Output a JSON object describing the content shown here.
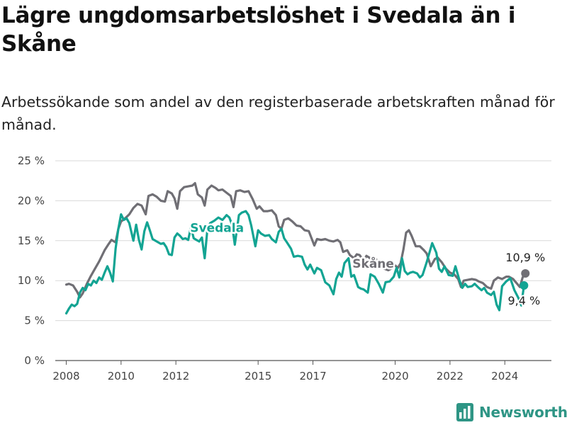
{
  "title": "Lägre ungdomsarbetslöshet i Svedala än i Skåne",
  "subtitle": "Arbetssökande som andel av den registerbaserade arbetskraften månad för månad.",
  "brand": {
    "name": "Newsworthy",
    "logo_icon": "bar-chart-icon",
    "color": "#2e9585"
  },
  "colors": {
    "svedala": "#13a493",
    "skane": "#706f75",
    "grid": "#d9d9d9",
    "axis": "#444444"
  },
  "chart_data": {
    "type": "line",
    "xlim": [
      2007.6,
      2025.7
    ],
    "ylim": [
      0,
      25
    ],
    "x_ticks": [
      {
        "value": 2008,
        "label": "2008"
      },
      {
        "value": 2010,
        "label": "2010"
      },
      {
        "value": 2012,
        "label": "2012"
      },
      {
        "value": 2015,
        "label": "2015"
      },
      {
        "value": 2017,
        "label": "2017"
      },
      {
        "value": 2020,
        "label": "2020"
      },
      {
        "value": 2022,
        "label": "2022"
      },
      {
        "value": 2024,
        "label": "2024"
      }
    ],
    "y_ticks": [
      {
        "value": 0,
        "label": "0 %"
      },
      {
        "value": 5,
        "label": "5 %"
      },
      {
        "value": 10,
        "label": "10 %"
      },
      {
        "value": 15,
        "label": "15 %"
      },
      {
        "value": 20,
        "label": "20 %"
      },
      {
        "value": 25,
        "label": "25 %"
      }
    ],
    "series": [
      {
        "name": "Skåne",
        "label": "Skåne",
        "color": "#706f75",
        "label_at": [
          2019.2,
          11.6
        ],
        "end_label": "10,9 %",
        "points": [
          [
            2008.0,
            9.5
          ],
          [
            2008.1,
            9.6
          ],
          [
            2008.25,
            9.4
          ],
          [
            2008.4,
            8.6
          ],
          [
            2008.5,
            7.9
          ],
          [
            2008.6,
            8.4
          ],
          [
            2008.75,
            9.6
          ],
          [
            2008.9,
            10.6
          ],
          [
            2009.0,
            11.2
          ],
          [
            2009.2,
            12.4
          ],
          [
            2009.4,
            13.8
          ],
          [
            2009.55,
            14.6
          ],
          [
            2009.65,
            15.1
          ],
          [
            2009.8,
            14.8
          ],
          [
            2009.9,
            16.5
          ],
          [
            2010.0,
            17.4
          ],
          [
            2010.15,
            17.8
          ],
          [
            2010.3,
            18.3
          ],
          [
            2010.45,
            19.1
          ],
          [
            2010.6,
            19.6
          ],
          [
            2010.75,
            19.4
          ],
          [
            2010.9,
            18.3
          ],
          [
            2011.0,
            20.6
          ],
          [
            2011.15,
            20.8
          ],
          [
            2011.3,
            20.5
          ],
          [
            2011.45,
            20.0
          ],
          [
            2011.6,
            19.9
          ],
          [
            2011.7,
            21.2
          ],
          [
            2011.85,
            20.9
          ],
          [
            2011.95,
            20.3
          ],
          [
            2012.05,
            19.0
          ],
          [
            2012.15,
            21.2
          ],
          [
            2012.3,
            21.7
          ],
          [
            2012.45,
            21.8
          ],
          [
            2012.6,
            21.9
          ],
          [
            2012.7,
            22.2
          ],
          [
            2012.8,
            20.8
          ],
          [
            2012.95,
            20.4
          ],
          [
            2013.05,
            19.4
          ],
          [
            2013.15,
            21.4
          ],
          [
            2013.3,
            21.9
          ],
          [
            2013.45,
            21.6
          ],
          [
            2013.55,
            21.3
          ],
          [
            2013.7,
            21.4
          ],
          [
            2013.85,
            21.0
          ],
          [
            2014.0,
            20.6
          ],
          [
            2014.1,
            19.2
          ],
          [
            2014.2,
            21.2
          ],
          [
            2014.35,
            21.3
          ],
          [
            2014.5,
            21.1
          ],
          [
            2014.65,
            21.2
          ],
          [
            2014.8,
            20.2
          ],
          [
            2014.95,
            19.0
          ],
          [
            2015.05,
            19.3
          ],
          [
            2015.2,
            18.7
          ],
          [
            2015.35,
            18.7
          ],
          [
            2015.5,
            18.8
          ],
          [
            2015.65,
            18.2
          ],
          [
            2015.75,
            16.8
          ],
          [
            2015.85,
            16.5
          ],
          [
            2015.95,
            17.6
          ],
          [
            2016.1,
            17.8
          ],
          [
            2016.25,
            17.4
          ],
          [
            2016.4,
            16.9
          ],
          [
            2016.55,
            16.8
          ],
          [
            2016.7,
            16.3
          ],
          [
            2016.85,
            16.2
          ],
          [
            2016.95,
            15.3
          ],
          [
            2017.05,
            14.4
          ],
          [
            2017.15,
            15.2
          ],
          [
            2017.3,
            15.1
          ],
          [
            2017.45,
            15.2
          ],
          [
            2017.6,
            15.0
          ],
          [
            2017.75,
            14.9
          ],
          [
            2017.9,
            15.1
          ],
          [
            2018.0,
            14.8
          ],
          [
            2018.1,
            13.6
          ],
          [
            2018.25,
            13.8
          ],
          [
            2018.35,
            13.2
          ],
          [
            2018.5,
            12.8
          ],
          [
            2018.6,
            13.3
          ],
          [
            2018.7,
            13.2
          ],
          [
            2018.85,
            12.5
          ],
          [
            2018.95,
            13.1
          ],
          [
            2019.05,
            12.9
          ],
          [
            2019.15,
            12.6
          ],
          [
            2019.3,
            12.7
          ],
          [
            2019.45,
            11.8
          ],
          [
            2019.6,
            11.5
          ],
          [
            2019.75,
            11.3
          ],
          [
            2019.9,
            11.6
          ],
          [
            2020.0,
            11.9
          ],
          [
            2020.1,
            11.6
          ],
          [
            2020.2,
            12.2
          ],
          [
            2020.3,
            13.9
          ],
          [
            2020.4,
            16.0
          ],
          [
            2020.5,
            16.3
          ],
          [
            2020.6,
            15.6
          ],
          [
            2020.75,
            14.3
          ],
          [
            2020.9,
            14.3
          ],
          [
            2021.05,
            13.8
          ],
          [
            2021.15,
            13.4
          ],
          [
            2021.3,
            11.8
          ],
          [
            2021.45,
            12.7
          ],
          [
            2021.55,
            12.9
          ],
          [
            2021.7,
            12.3
          ],
          [
            2021.85,
            11.5
          ],
          [
            2022.0,
            11.0
          ],
          [
            2022.15,
            10.8
          ],
          [
            2022.3,
            10.2
          ],
          [
            2022.4,
            9.2
          ],
          [
            2022.5,
            10.0
          ],
          [
            2022.65,
            10.1
          ],
          [
            2022.8,
            10.2
          ],
          [
            2022.95,
            10.1
          ],
          [
            2023.05,
            9.9
          ],
          [
            2023.2,
            9.7
          ],
          [
            2023.35,
            9.2
          ],
          [
            2023.5,
            9.0
          ],
          [
            2023.6,
            10.0
          ],
          [
            2023.75,
            10.4
          ],
          [
            2023.9,
            10.2
          ],
          [
            2024.05,
            10.5
          ],
          [
            2024.15,
            10.5
          ],
          [
            2024.3,
            10.2
          ],
          [
            2024.45,
            9.6
          ],
          [
            2024.55,
            9.2
          ],
          [
            2024.65,
            10.4
          ],
          [
            2024.75,
            10.9
          ]
        ]
      },
      {
        "name": "Svedala",
        "label": "Svedala",
        "color": "#13a493",
        "label_at": [
          2013.5,
          16.1
        ],
        "end_label": "9,4 %",
        "points": [
          [
            2008.0,
            5.9
          ],
          [
            2008.1,
            6.5
          ],
          [
            2008.2,
            7.0
          ],
          [
            2008.3,
            6.8
          ],
          [
            2008.4,
            7.1
          ],
          [
            2008.5,
            8.5
          ],
          [
            2008.6,
            9.1
          ],
          [
            2008.7,
            8.8
          ],
          [
            2008.8,
            9.6
          ],
          [
            2008.9,
            9.4
          ],
          [
            2009.0,
            10.0
          ],
          [
            2009.1,
            9.7
          ],
          [
            2009.2,
            10.4
          ],
          [
            2009.3,
            10.1
          ],
          [
            2009.4,
            11.0
          ],
          [
            2009.5,
            11.8
          ],
          [
            2009.6,
            11.0
          ],
          [
            2009.7,
            9.9
          ],
          [
            2009.8,
            14.0
          ],
          [
            2009.9,
            16.5
          ],
          [
            2010.0,
            18.3
          ],
          [
            2010.1,
            17.6
          ],
          [
            2010.2,
            17.8
          ],
          [
            2010.3,
            17.2
          ],
          [
            2010.45,
            15.0
          ],
          [
            2010.55,
            17.0
          ],
          [
            2010.65,
            15.1
          ],
          [
            2010.75,
            13.9
          ],
          [
            2010.85,
            16.2
          ],
          [
            2010.95,
            17.3
          ],
          [
            2011.05,
            16.3
          ],
          [
            2011.15,
            15.2
          ],
          [
            2011.3,
            14.9
          ],
          [
            2011.45,
            14.6
          ],
          [
            2011.55,
            14.7
          ],
          [
            2011.65,
            14.2
          ],
          [
            2011.75,
            13.3
          ],
          [
            2011.85,
            13.2
          ],
          [
            2011.95,
            15.4
          ],
          [
            2012.05,
            15.9
          ],
          [
            2012.15,
            15.6
          ],
          [
            2012.25,
            15.2
          ],
          [
            2012.35,
            15.3
          ],
          [
            2012.45,
            15.1
          ],
          [
            2012.55,
            16.7
          ],
          [
            2012.65,
            15.3
          ],
          [
            2012.75,
            15.1
          ],
          [
            2012.85,
            14.9
          ],
          [
            2012.95,
            15.4
          ],
          [
            2013.05,
            12.8
          ],
          [
            2013.15,
            16.4
          ],
          [
            2013.25,
            17.2
          ],
          [
            2013.4,
            17.5
          ],
          [
            2013.55,
            17.9
          ],
          [
            2013.7,
            17.6
          ],
          [
            2013.85,
            18.2
          ],
          [
            2013.95,
            17.9
          ],
          [
            2014.05,
            17.0
          ],
          [
            2014.15,
            14.5
          ],
          [
            2014.3,
            18.2
          ],
          [
            2014.4,
            18.5
          ],
          [
            2014.55,
            18.7
          ],
          [
            2014.65,
            18.2
          ],
          [
            2014.75,
            16.9
          ],
          [
            2014.9,
            14.3
          ],
          [
            2015.0,
            16.3
          ],
          [
            2015.1,
            15.9
          ],
          [
            2015.25,
            15.6
          ],
          [
            2015.4,
            15.7
          ],
          [
            2015.5,
            15.2
          ],
          [
            2015.65,
            14.8
          ],
          [
            2015.75,
            16.1
          ],
          [
            2015.85,
            16.5
          ],
          [
            2015.95,
            15.3
          ],
          [
            2016.05,
            14.8
          ],
          [
            2016.2,
            14.0
          ],
          [
            2016.3,
            13.0
          ],
          [
            2016.45,
            13.1
          ],
          [
            2016.6,
            13.0
          ],
          [
            2016.7,
            12.0
          ],
          [
            2016.8,
            11.4
          ],
          [
            2016.9,
            12.0
          ],
          [
            2017.05,
            10.9
          ],
          [
            2017.15,
            11.6
          ],
          [
            2017.3,
            11.3
          ],
          [
            2017.45,
            9.8
          ],
          [
            2017.6,
            9.4
          ],
          [
            2017.75,
            8.3
          ],
          [
            2017.85,
            10.2
          ],
          [
            2017.95,
            11.0
          ],
          [
            2018.05,
            10.5
          ],
          [
            2018.15,
            12.2
          ],
          [
            2018.3,
            12.8
          ],
          [
            2018.4,
            10.5
          ],
          [
            2018.5,
            10.7
          ],
          [
            2018.65,
            9.2
          ],
          [
            2018.75,
            9.0
          ],
          [
            2018.85,
            8.9
          ],
          [
            2019.0,
            8.5
          ],
          [
            2019.1,
            10.8
          ],
          [
            2019.25,
            10.5
          ],
          [
            2019.4,
            9.6
          ],
          [
            2019.55,
            8.5
          ],
          [
            2019.65,
            9.8
          ],
          [
            2019.8,
            9.9
          ],
          [
            2019.95,
            10.5
          ],
          [
            2020.05,
            11.6
          ],
          [
            2020.15,
            10.4
          ],
          [
            2020.25,
            12.8
          ],
          [
            2020.35,
            11.2
          ],
          [
            2020.45,
            10.8
          ],
          [
            2020.55,
            11.0
          ],
          [
            2020.65,
            11.1
          ],
          [
            2020.8,
            10.9
          ],
          [
            2020.9,
            10.4
          ],
          [
            2021.0,
            10.7
          ],
          [
            2021.15,
            12.3
          ],
          [
            2021.35,
            14.7
          ],
          [
            2021.5,
            13.5
          ],
          [
            2021.6,
            11.5
          ],
          [
            2021.7,
            11.1
          ],
          [
            2021.8,
            11.8
          ],
          [
            2021.95,
            10.7
          ],
          [
            2022.1,
            10.6
          ],
          [
            2022.2,
            11.8
          ],
          [
            2022.35,
            10.0
          ],
          [
            2022.45,
            9.1
          ],
          [
            2022.55,
            9.6
          ],
          [
            2022.65,
            9.2
          ],
          [
            2022.8,
            9.3
          ],
          [
            2022.9,
            9.6
          ],
          [
            2023.05,
            9.1
          ],
          [
            2023.15,
            8.8
          ],
          [
            2023.25,
            9.1
          ],
          [
            2023.35,
            8.5
          ],
          [
            2023.5,
            8.2
          ],
          [
            2023.6,
            8.6
          ],
          [
            2023.7,
            7.0
          ],
          [
            2023.8,
            6.3
          ],
          [
            2023.9,
            9.3
          ],
          [
            2024.05,
            9.9
          ],
          [
            2024.2,
            10.3
          ],
          [
            2024.35,
            8.8
          ],
          [
            2024.5,
            7.8
          ],
          [
            2024.6,
            6.9
          ],
          [
            2024.7,
            9.4
          ]
        ]
      }
    ]
  }
}
